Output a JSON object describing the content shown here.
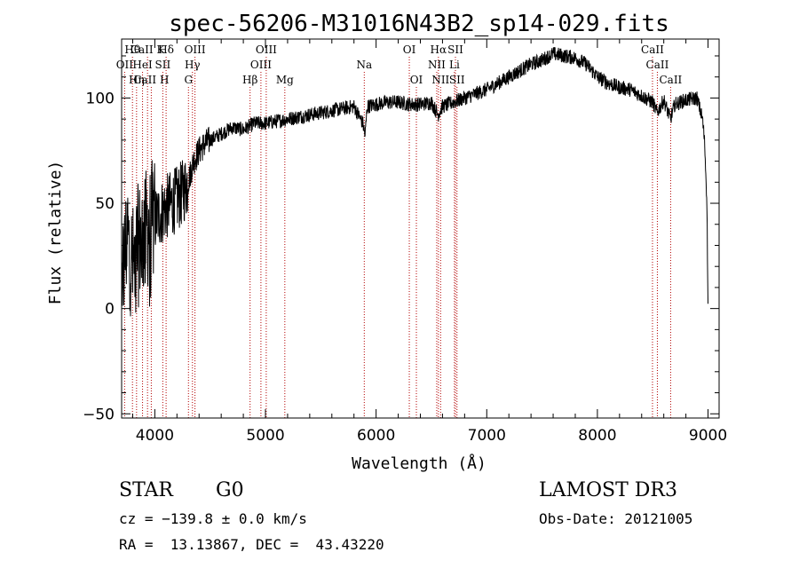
{
  "chart_data": {
    "type": "line",
    "title": "spec-56206-M31016N43B2_sp14-029.fits",
    "xlabel": "Wavelength (Å)",
    "ylabel": "Flux (relative)",
    "xlim": [
      3700,
      9100
    ],
    "ylim": [
      -52,
      128
    ],
    "xticks": [
      4000,
      5000,
      6000,
      7000,
      8000,
      9000
    ],
    "xtick_labels": [
      "4000",
      "5000",
      "6000",
      "7000",
      "8000",
      "9000"
    ],
    "yticks": [
      -50,
      0,
      50,
      100
    ],
    "ytick_labels": [
      "−50",
      "0",
      "50",
      "100"
    ],
    "series": [
      {
        "name": "flux",
        "x": [
          3700,
          3750,
          3800,
          3850,
          3900,
          3950,
          4000,
          4050,
          4100,
          4150,
          4200,
          4250,
          4300,
          4350,
          4400,
          4450,
          4500,
          4600,
          4700,
          4800,
          4900,
          5000,
          5100,
          5200,
          5400,
          5600,
          5800,
          5880,
          5900,
          5920,
          6000,
          6100,
          6200,
          6300,
          6400,
          6500,
          6560,
          6600,
          6700,
          6800,
          6900,
          7000,
          7100,
          7200,
          7300,
          7400,
          7500,
          7600,
          7700,
          7800,
          7900,
          8000,
          8100,
          8200,
          8300,
          8400,
          8500,
          8540,
          8600,
          8660,
          8700,
          8800,
          8900,
          8950,
          8970,
          8990,
          9000
        ],
        "y": [
          10,
          35,
          20,
          30,
          35,
          40,
          42,
          45,
          48,
          50,
          52,
          55,
          60,
          70,
          75,
          78,
          80,
          83,
          86,
          85,
          88,
          88,
          89,
          90,
          92,
          94,
          96,
          88,
          82,
          96,
          97,
          98,
          98,
          97,
          97,
          98,
          92,
          96,
          98,
          100,
          102,
          104,
          107,
          110,
          113,
          116,
          118,
          121,
          120,
          119,
          116,
          110,
          107,
          105,
          104,
          101,
          98,
          93,
          99,
          90,
          97,
          99,
          100,
          90,
          78,
          50,
          0
        ]
      }
    ],
    "spectral_lines": [
      {
        "label": "Hθ",
        "wavelength": 3798,
        "row": 1
      },
      {
        "label": "CaII K",
        "wavelength": 3934,
        "row": 1
      },
      {
        "label": "Hδ",
        "wavelength": 4102,
        "row": 1
      },
      {
        "label": "OIII",
        "wavelength": 4363,
        "row": 1
      },
      {
        "label": "OIII",
        "wavelength": 5007,
        "row": 1
      },
      {
        "label": "OI",
        "wavelength": 6300,
        "row": 1
      },
      {
        "label": "Hα",
        "wavelength": 6563,
        "row": 1
      },
      {
        "label": "SII",
        "wavelength": 6717,
        "row": 1
      },
      {
        "label": "CaII",
        "wavelength": 8498,
        "row": 1
      },
      {
        "label": "OII",
        "wavelength": 3727,
        "row": 2
      },
      {
        "label": "HeI",
        "wavelength": 3889,
        "row": 2
      },
      {
        "label": "SII",
        "wavelength": 4072,
        "row": 2
      },
      {
        "label": "Hγ",
        "wavelength": 4340,
        "row": 2
      },
      {
        "label": "OIII",
        "wavelength": 4959,
        "row": 2
      },
      {
        "label": "Na",
        "wavelength": 5893,
        "row": 2
      },
      {
        "label": "NII",
        "wavelength": 6548,
        "row": 2
      },
      {
        "label": "Li",
        "wavelength": 6708,
        "row": 2
      },
      {
        "label": "CaII",
        "wavelength": 8542,
        "row": 2
      },
      {
        "label": "CaII H",
        "wavelength": 3968,
        "row": 3
      },
      {
        "label": "G",
        "wavelength": 4304,
        "row": 3
      },
      {
        "label": "Hβ",
        "wavelength": 4861,
        "row": 3
      },
      {
        "label": "Mg",
        "wavelength": 5175,
        "row": 3
      },
      {
        "label": "OI",
        "wavelength": 6364,
        "row": 3
      },
      {
        "label": "NII",
        "wavelength": 6583,
        "row": 3
      },
      {
        "label": "SII",
        "wavelength": 6731,
        "row": 3
      },
      {
        "label": "CaII",
        "wavelength": 8662,
        "row": 3
      },
      {
        "label": "Hη",
        "wavelength": 3835,
        "row": 3
      }
    ]
  },
  "info": {
    "class": "STAR",
    "subclass": "G0",
    "survey": "LAMOST DR3",
    "cz": "cz = −139.8 ± 0.0 km/s",
    "obs_date": "Obs-Date: 20121005",
    "coords": "RA =  13.13867, DEC =  43.43220"
  },
  "colors": {
    "line": "#000000",
    "marker": "#b30000",
    "axis": "#000000"
  }
}
